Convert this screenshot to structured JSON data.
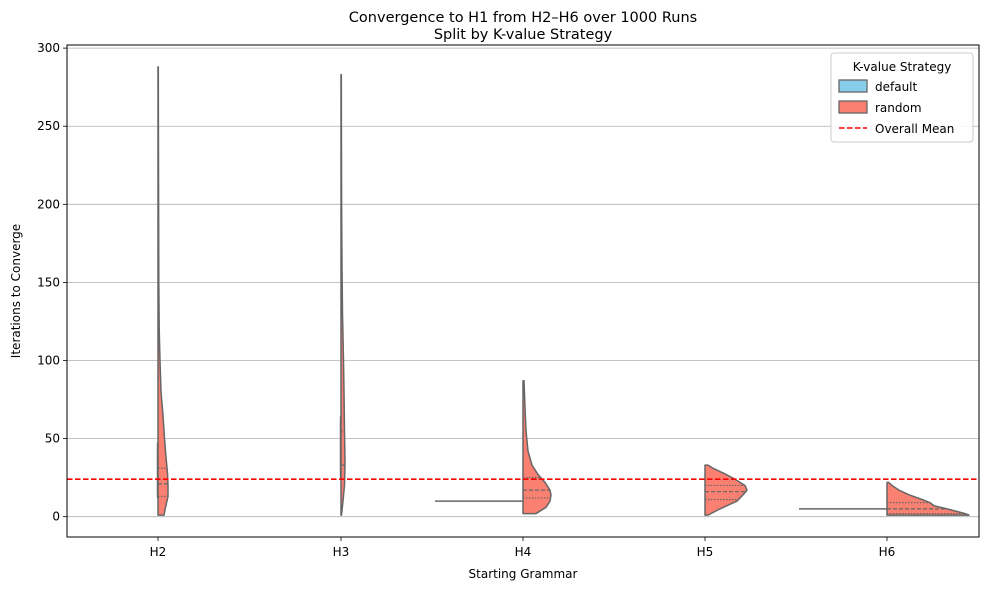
{
  "chart_data": {
    "type": "violin",
    "title": "Convergence to H1 from H2–H6 over 1000 Runs",
    "subtitle": "Split by K-value Strategy",
    "xlabel": "Starting Grammar",
    "ylabel": "Iterations to Converge",
    "categories": [
      "H2",
      "H3",
      "H4",
      "H5",
      "H6"
    ],
    "ylim": [
      -13,
      302
    ],
    "yticks": [
      0,
      50,
      100,
      150,
      200,
      250,
      300
    ],
    "grid": "y",
    "legend": {
      "title": "K-value Strategy",
      "placement": "top-right",
      "entries": [
        "default",
        "random",
        "Overall Mean"
      ]
    },
    "colors": {
      "default": "#87ceeb",
      "random": "#fa8072",
      "mean_line": "#ff0000",
      "outline": "#666666"
    },
    "overall_mean": 24,
    "series": [
      {
        "name": "default",
        "side": "left",
        "groups": [
          {
            "category": "H2",
            "min": 12,
            "max": 47,
            "quartiles": [
              13,
              31,
              38
            ],
            "profile": [
              [
                12,
                0.4
              ],
              [
                20,
                0.5
              ],
              [
                30,
                0.5
              ],
              [
                40,
                0.5
              ],
              [
                47,
                0.4
              ]
            ]
          },
          {
            "category": "H3",
            "min": 24,
            "max": 64,
            "quartiles": [
              32,
              55,
              60
            ],
            "profile": [
              [
                24,
                0.4
              ],
              [
                35,
                0.5
              ],
              [
                50,
                0.5
              ],
              [
                60,
                0.5
              ],
              [
                64,
                0.4
              ]
            ]
          },
          {
            "category": "H4",
            "min": 10,
            "max": 10,
            "quartiles": [],
            "profile": []
          },
          {
            "category": "H5",
            "min": 0,
            "max": 0,
            "quartiles": [],
            "profile": []
          },
          {
            "category": "H6",
            "min": 5,
            "max": 5,
            "quartiles": [],
            "profile": []
          }
        ]
      },
      {
        "name": "random",
        "side": "right",
        "groups": [
          {
            "category": "H2",
            "min": 1,
            "max": 288,
            "quartiles": [
              13,
              21,
              31
            ],
            "profile": [
              [
                1,
                6
              ],
              [
                6,
                7.5
              ],
              [
                13,
                10
              ],
              [
                20,
                10
              ],
              [
                28,
                9.5
              ],
              [
                38,
                8
              ],
              [
                50,
                6.5
              ],
              [
                65,
                5
              ],
              [
                80,
                3
              ],
              [
                100,
                2
              ],
              [
                120,
                1.2
              ],
              [
                150,
                0.8
              ],
              [
                200,
                0.6
              ],
              [
                250,
                0.4
              ],
              [
                288,
                0.3
              ]
            ]
          },
          {
            "category": "H3",
            "min": 1,
            "max": 283,
            "quartiles": [
              24,
              33,
              55
            ],
            "profile": [
              [
                1,
                0.5
              ],
              [
                10,
                2
              ],
              [
                20,
                3.5
              ],
              [
                35,
                4
              ],
              [
                55,
                3.5
              ],
              [
                80,
                3
              ],
              [
                100,
                2.5
              ],
              [
                130,
                1.5
              ],
              [
                160,
                1
              ],
              [
                200,
                0.6
              ],
              [
                250,
                0.4
              ],
              [
                283,
                0.3
              ]
            ]
          },
          {
            "category": "H4",
            "min": 2,
            "max": 87,
            "quartiles": [
              12,
              17,
              25
            ],
            "profile": [
              [
                2,
                13
              ],
              [
                6,
                23
              ],
              [
                10,
                27
              ],
              [
                14,
                28
              ],
              [
                17,
                27
              ],
              [
                22,
                22
              ],
              [
                27,
                15
              ],
              [
                33,
                9
              ],
              [
                42,
                5
              ],
              [
                55,
                3
              ],
              [
                70,
                2
              ],
              [
                87,
                1
              ]
            ]
          },
          {
            "category": "H5",
            "min": 1,
            "max": 33,
            "quartiles": [
              11,
              16,
              20
            ],
            "profile": [
              [
                1,
                3
              ],
              [
                5,
                15
              ],
              [
                10,
                32
              ],
              [
                14,
                38
              ],
              [
                17,
                42
              ],
              [
                20,
                40
              ],
              [
                24,
                30
              ],
              [
                28,
                18
              ],
              [
                31,
                8
              ],
              [
                33,
                3
              ]
            ]
          },
          {
            "category": "H6",
            "min": 1,
            "max": 22,
            "quartiles": [
              2,
              5,
              9
            ],
            "profile": [
              [
                1,
                82
              ],
              [
                2,
                78
              ],
              [
                3,
                72
              ],
              [
                5,
                60
              ],
              [
                7,
                47
              ],
              [
                9,
                43
              ],
              [
                11,
                35
              ],
              [
                14,
                22
              ],
              [
                17,
                12
              ],
              [
                20,
                5
              ],
              [
                22,
                1.5
              ]
            ]
          }
        ]
      }
    ]
  }
}
